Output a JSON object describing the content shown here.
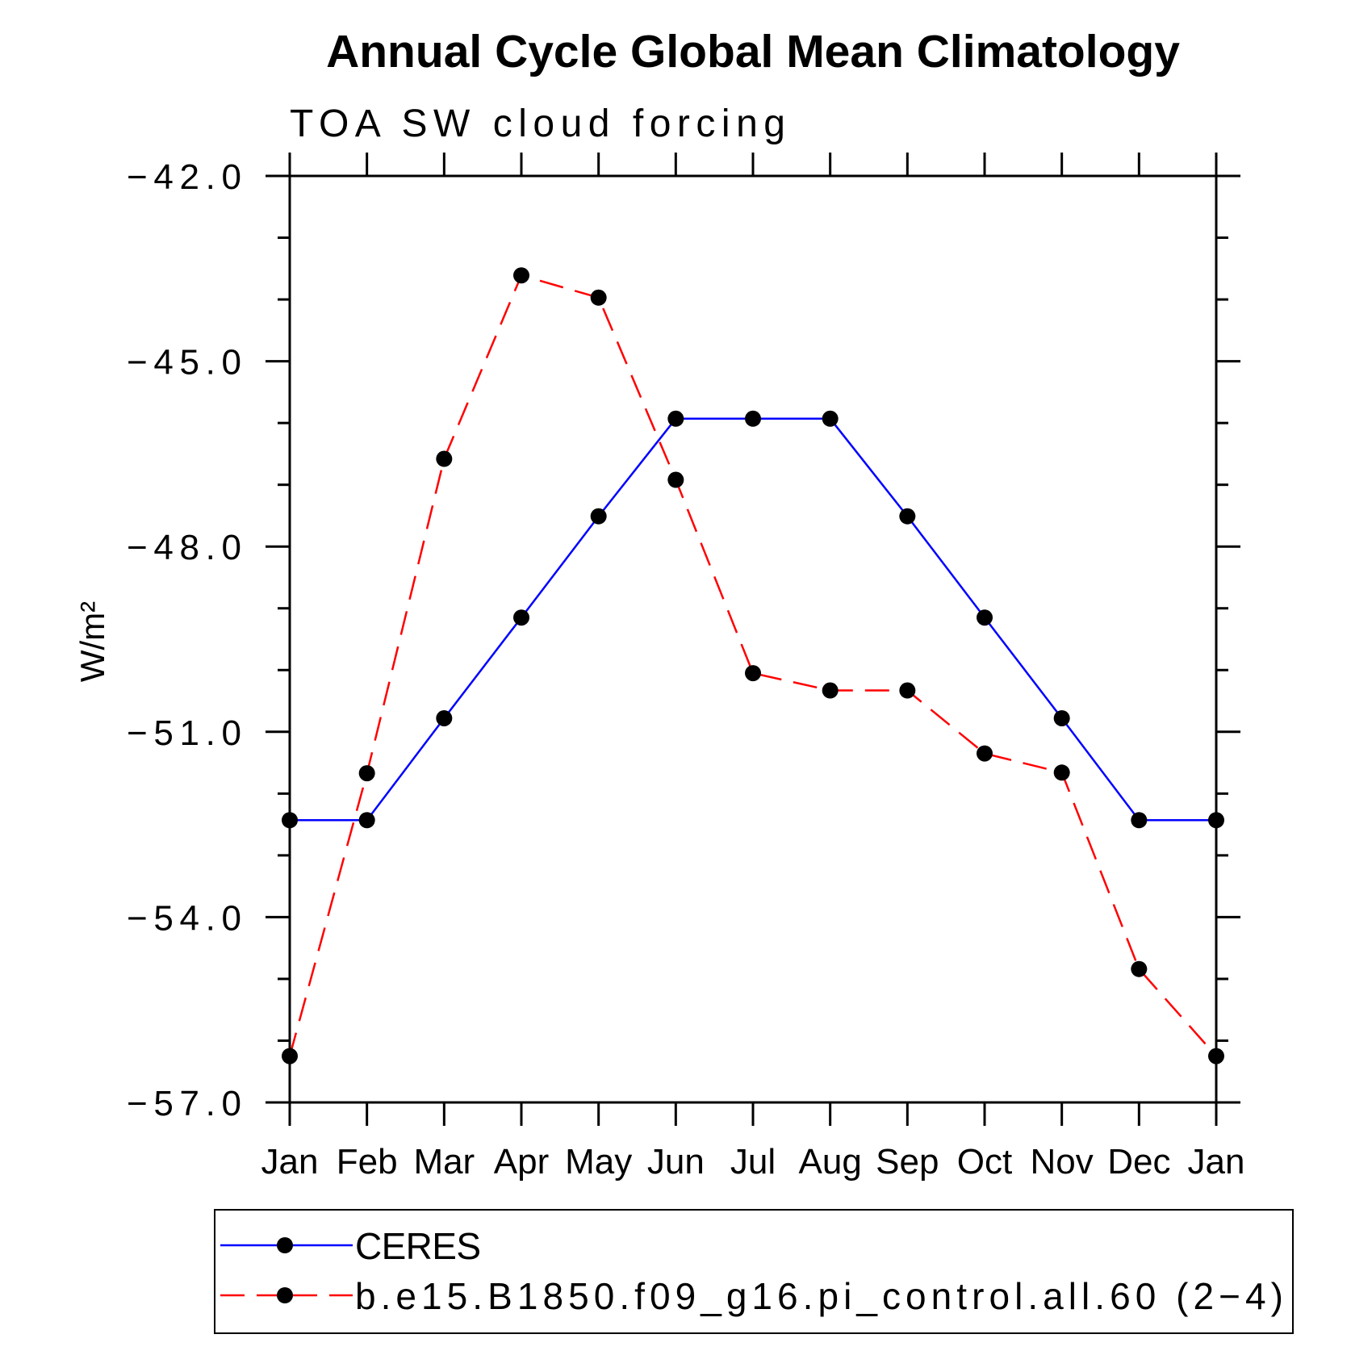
{
  "chart_data": {
    "type": "line",
    "title": "Annual Cycle Global Mean Climatology",
    "subtitle": "TOA SW cloud forcing",
    "xlabel": "",
    "ylabel": "W/m²",
    "categories": [
      "Jan",
      "Feb",
      "Mar",
      "Apr",
      "May",
      "Jun",
      "Jul",
      "Aug",
      "Sep",
      "Oct",
      "Nov",
      "Dec",
      "Jan"
    ],
    "ylim": [
      -57,
      -42
    ],
    "yticks": [
      -42,
      -45,
      -48,
      -51,
      -54,
      -57
    ],
    "ytick_labels": [
      "−42.0",
      "−45.0",
      "−48.0",
      "−51.0",
      "−54.0",
      "−57.0"
    ],
    "yminor_step": 1,
    "series": [
      {
        "name": "CERES",
        "color": "#0000ff",
        "dashed": false,
        "values": [
          -52.43,
          -52.43,
          -50.78,
          -49.15,
          -47.51,
          -45.93,
          -45.93,
          -45.93,
          -47.51,
          -49.15,
          -50.78,
          -52.43,
          -52.43
        ]
      },
      {
        "name": "b.e15.B1850.f09_g16.pi_control.all.60 (2−4)",
        "color": "#ff0000",
        "dashed": true,
        "values": [
          -56.25,
          -51.67,
          -46.58,
          -43.61,
          -43.97,
          -46.92,
          -50.05,
          -50.33,
          -50.33,
          -51.35,
          -51.66,
          -54.84,
          -56.25
        ]
      }
    ]
  }
}
